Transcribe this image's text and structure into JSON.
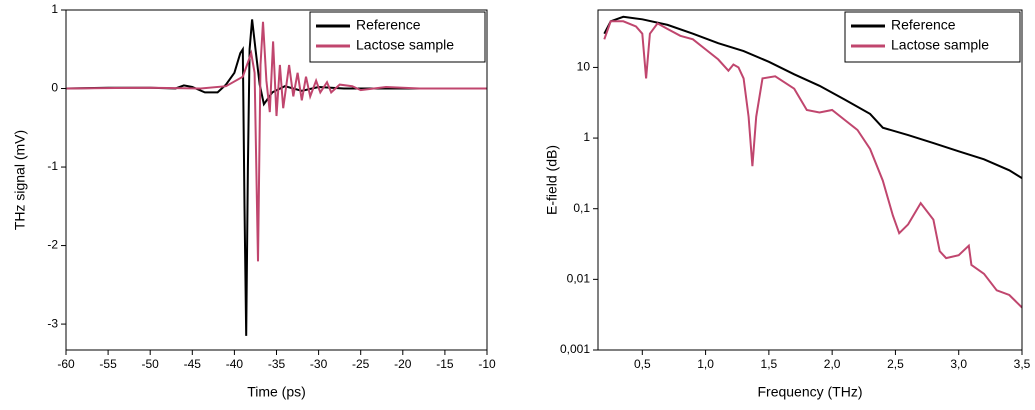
{
  "chart_data": [
    {
      "type": "line",
      "xlabel": "Time (ps)",
      "ylabel": "THz signal (mV)",
      "log_y": false,
      "legend": "upper right",
      "xlim": [
        -60,
        -10
      ],
      "ylim": [
        -3.33,
        1
      ],
      "xticks": [
        -60,
        -55,
        -50,
        -45,
        -40,
        -35,
        -30,
        -25,
        -20,
        -15,
        -10
      ],
      "yticks": [
        -3,
        -2,
        -1,
        0,
        1
      ],
      "series": [
        {
          "name": "Reference",
          "color": "#000000",
          "x": [
            -60,
            -55,
            -50,
            -47,
            -46,
            -45,
            -43.5,
            -42,
            -41,
            -40,
            -39.3,
            -39,
            -38.8,
            -38.6,
            -38.4,
            -38.2,
            -37.9,
            -37.5,
            -37,
            -36.5,
            -35.5,
            -34,
            -32,
            -30,
            -27,
            -20,
            -10
          ],
          "values": [
            0,
            0.01,
            0.01,
            0,
            0.04,
            0.02,
            -0.05,
            -0.05,
            0.05,
            0.2,
            0.45,
            0.5,
            -1.5,
            -3.15,
            -1.0,
            0.5,
            0.88,
            0.5,
            0.05,
            -0.2,
            -0.05,
            0.03,
            -0.03,
            0.02,
            0,
            0,
            0
          ]
        },
        {
          "name": "Lactose sample",
          "color": "#c0466e",
          "x": [
            -60,
            -50,
            -44,
            -41,
            -39,
            -38,
            -37.6,
            -37.2,
            -36.9,
            -36.6,
            -36.2,
            -35.8,
            -35.4,
            -35,
            -34.6,
            -34.2,
            -33.5,
            -33,
            -32.5,
            -32,
            -31.5,
            -31,
            -30.3,
            -29.8,
            -29,
            -28.5,
            -27.5,
            -26,
            -25,
            -22,
            -18,
            -10
          ],
          "values": [
            0,
            0.01,
            0,
            0.03,
            0.15,
            0.45,
            0.2,
            -2.2,
            0.3,
            0.85,
            0.1,
            -0.3,
            0.6,
            -0.35,
            0.3,
            -0.25,
            0.3,
            -0.1,
            0.2,
            -0.15,
            0.15,
            -0.1,
            0.1,
            -0.05,
            0.08,
            -0.05,
            0.05,
            0.03,
            -0.02,
            0.02,
            0,
            0
          ]
        }
      ]
    },
    {
      "type": "line",
      "xlabel": "Frequency (THz)",
      "ylabel": "E-field (dB)",
      "log_y": true,
      "legend": "upper right",
      "xlim": [
        0.15,
        3.5
      ],
      "ylim": [
        0.001,
        65
      ],
      "xticks": [
        {
          "value": 0.5,
          "label": "0,5"
        },
        {
          "value": 1.0,
          "label": "1,0"
        },
        {
          "value": 1.5,
          "label": "1,5"
        },
        {
          "value": 2.0,
          "label": "2,0"
        },
        {
          "value": 2.5,
          "label": "2,5"
        },
        {
          "value": 3.0,
          "label": "3,0"
        },
        {
          "value": 3.5,
          "label": "3,5"
        }
      ],
      "yticks": [
        {
          "value": 0.001,
          "label": "0,001"
        },
        {
          "value": 0.01,
          "label": "0,01"
        },
        {
          "value": 0.1,
          "label": "0,1"
        },
        1,
        10
      ],
      "series": [
        {
          "name": "Reference",
          "color": "#000000",
          "x": [
            0.2,
            0.25,
            0.35,
            0.5,
            0.7,
            0.9,
            1.1,
            1.3,
            1.5,
            1.7,
            1.9,
            2.1,
            2.3,
            2.4,
            2.6,
            2.8,
            3.0,
            3.2,
            3.4,
            3.5
          ],
          "values": [
            30,
            45,
            52,
            48,
            40,
            30,
            22,
            17,
            12,
            8,
            5.5,
            3.5,
            2.2,
            1.4,
            1.1,
            0.85,
            0.65,
            0.5,
            0.35,
            0.27
          ]
        },
        {
          "name": "Lactose sample",
          "color": "#c0466e",
          "x": [
            0.2,
            0.25,
            0.35,
            0.45,
            0.5,
            0.53,
            0.56,
            0.62,
            0.7,
            0.8,
            0.9,
            1.0,
            1.1,
            1.18,
            1.22,
            1.26,
            1.3,
            1.34,
            1.37,
            1.4,
            1.45,
            1.55,
            1.7,
            1.8,
            1.9,
            2.0,
            2.1,
            2.2,
            2.3,
            2.4,
            2.48,
            2.53,
            2.6,
            2.7,
            2.8,
            2.85,
            2.9,
            3.0,
            3.08,
            3.1,
            3.2,
            3.3,
            3.4,
            3.5
          ],
          "values": [
            25,
            45,
            45,
            38,
            30,
            7,
            30,
            42,
            35,
            28,
            25,
            18,
            13,
            9,
            11,
            10,
            7,
            2,
            0.4,
            2,
            7,
            7.5,
            5,
            2.5,
            2.3,
            2.5,
            1.8,
            1.3,
            0.7,
            0.25,
            0.08,
            0.045,
            0.06,
            0.12,
            0.07,
            0.025,
            0.02,
            0.022,
            0.03,
            0.016,
            0.012,
            0.007,
            0.006,
            0.004
          ]
        }
      ]
    }
  ]
}
